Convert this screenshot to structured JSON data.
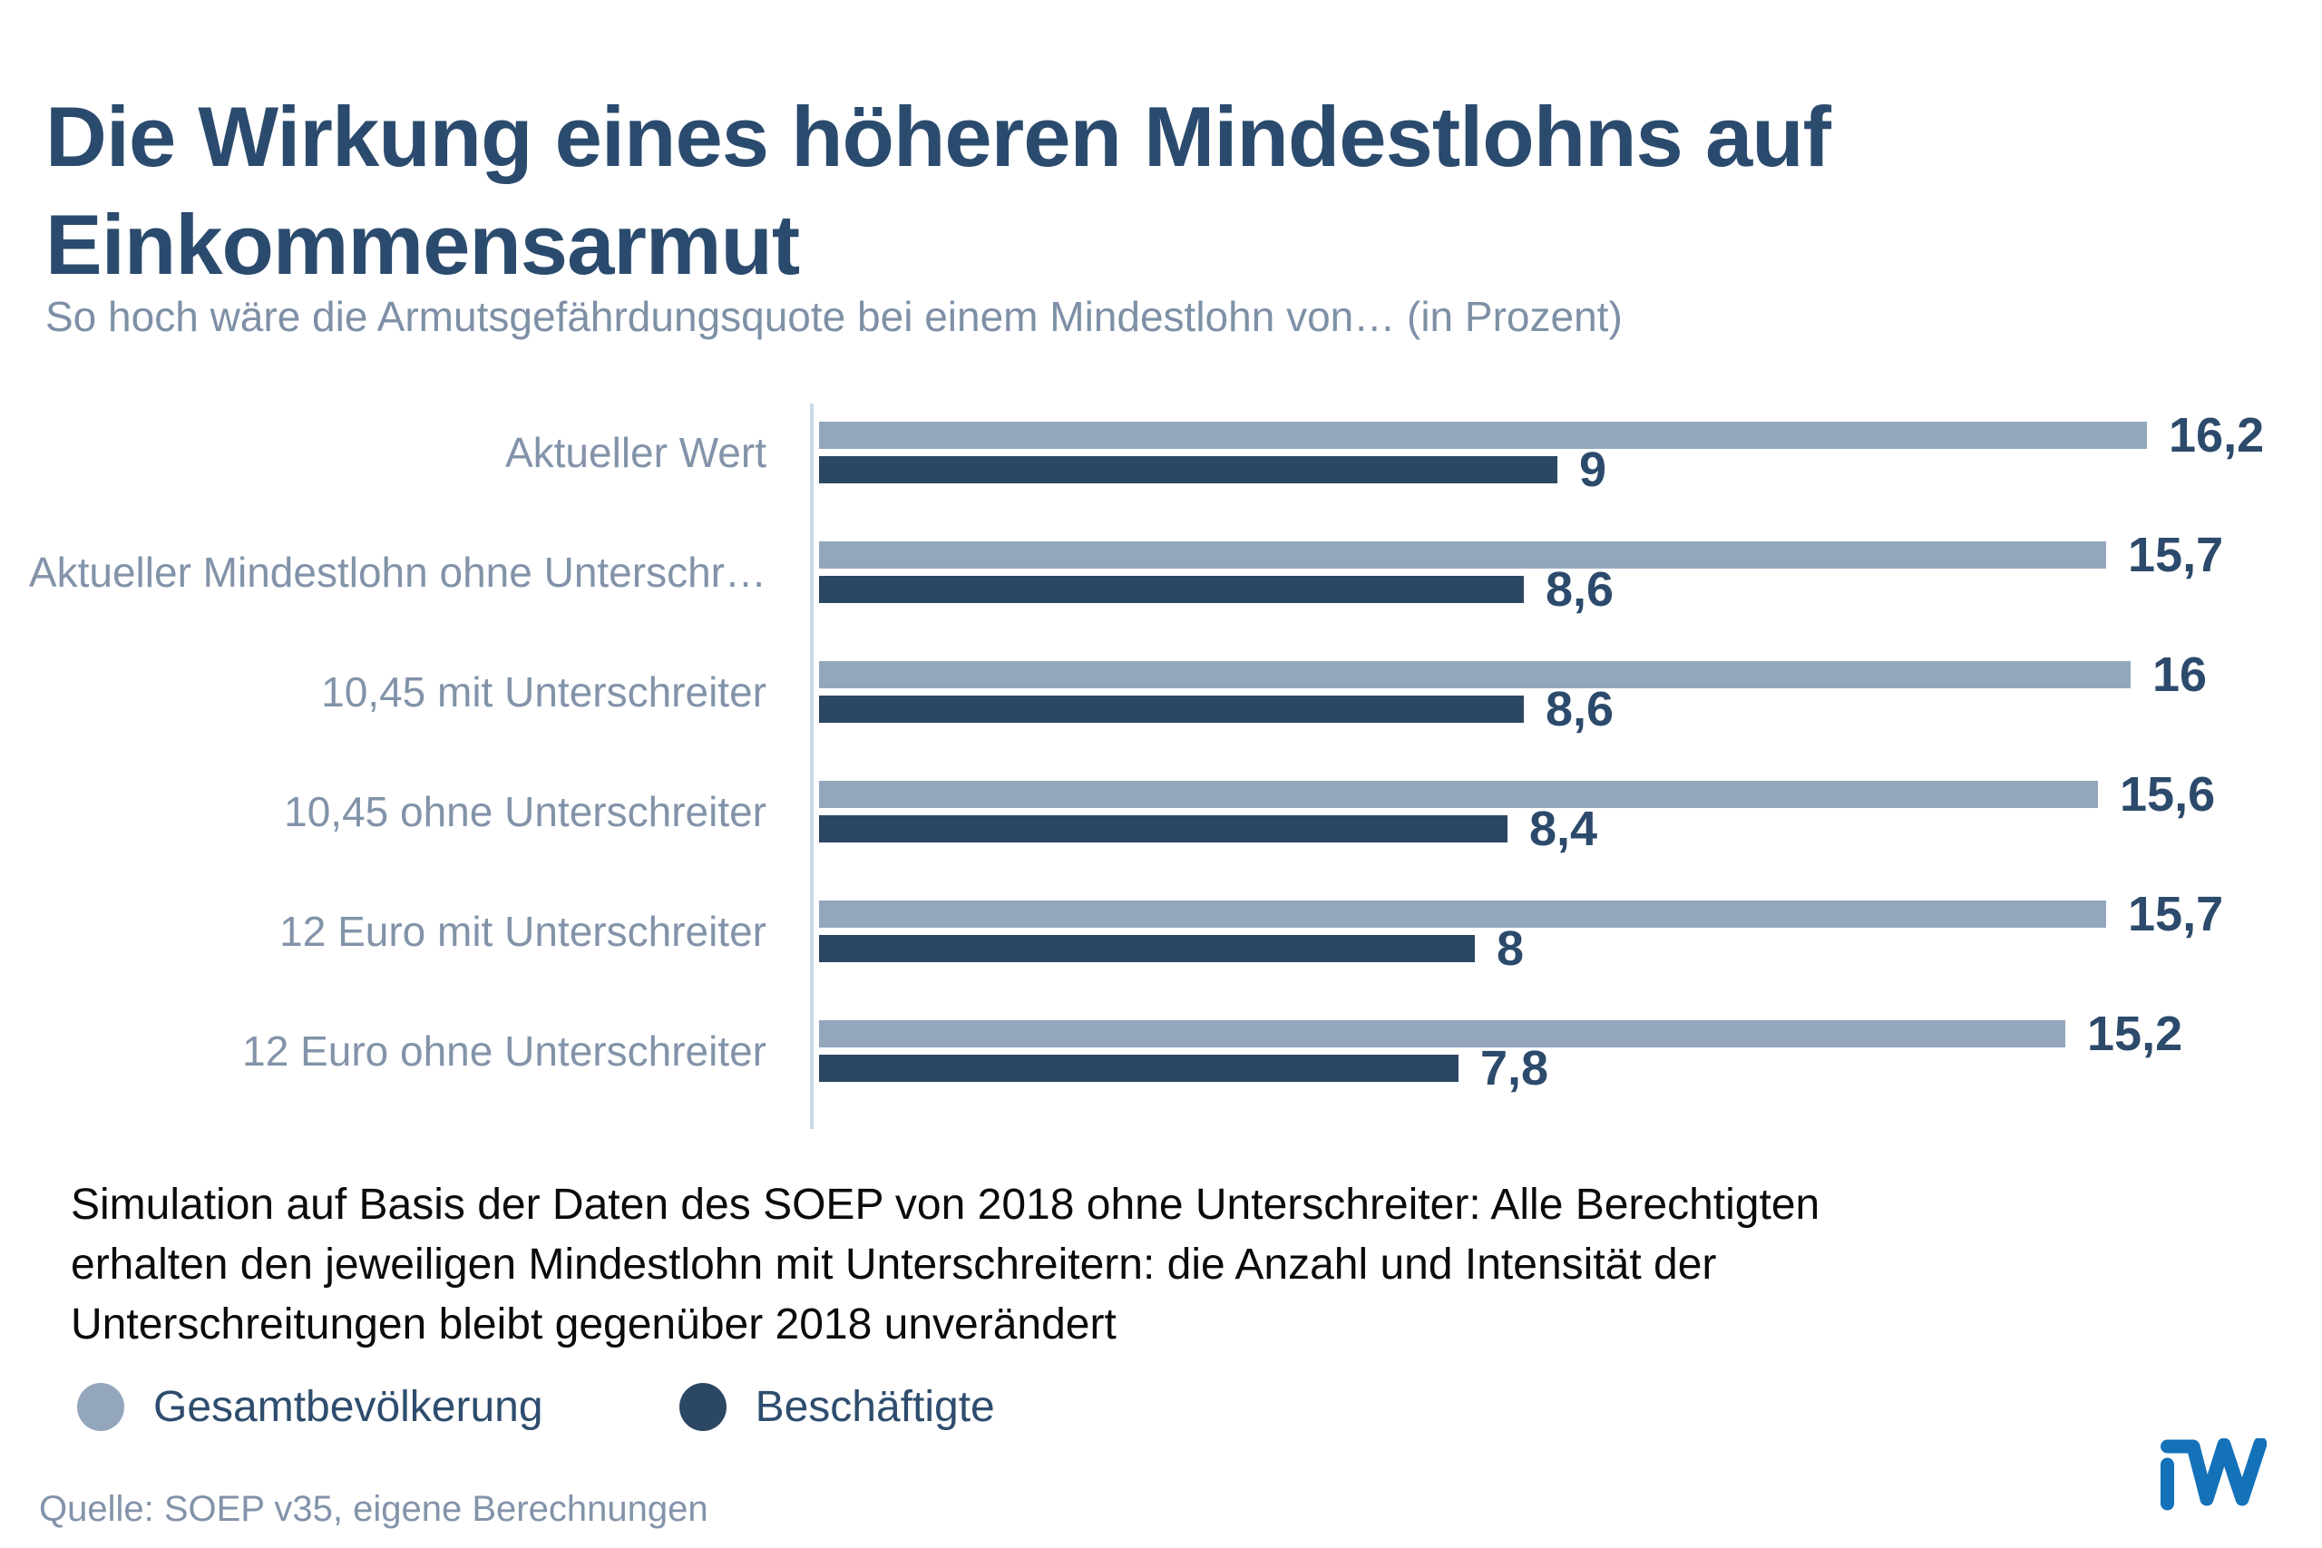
{
  "title": "Die Wirkung eines höheren Mindestlohns auf Einkommensarmut",
  "subtitle": "So hoch wäre die Armutsgefährdungsquote bei einem Mindestlohn von… (in Prozent)",
  "note_lines": [
    "Simulation auf Basis der Daten des SOEP von 2018 ohne Unterschreiter: Alle Berechtigten",
    "erhalten den jeweiligen Mindestlohn mit Unterschreitern: die Anzahl und Intensität der",
    "Unterschreitungen bleibt gegenüber 2018 unverändert"
  ],
  "legend": [
    {
      "label": "Gesamtbevölkerung",
      "color": "#93a6bc"
    },
    {
      "label": "Beschäftigte",
      "color": "#2c4763"
    }
  ],
  "source": "Quelle: SOEP v35, eigene Berechnungen",
  "logo_name": "IW",
  "colors": {
    "title": "#2b4b6e",
    "subtitle": "#7e90a6",
    "category_label": "#8293a9",
    "value_label": "#2c4a6b",
    "bar_light": "#93a6bc",
    "bar_dark": "#2c4763",
    "axis_line": "#ccd9e6",
    "logo_blue": "#1472b9"
  },
  "chart_data": {
    "type": "bar",
    "orientation": "horizontal",
    "title": "Die Wirkung eines höheren Mindestlohns auf Einkommensarmut",
    "subtitle": "So hoch wäre die Armutsgefährdungsquote bei einem Mindestlohn von… (in Prozent)",
    "unit": "Prozent",
    "categories": [
      "Aktueller Wert",
      "Aktueller Mindestlohn ohne Unterschr…",
      "10,45 mit Unterschreiter",
      "10,45 ohne Unterschreiter",
      "12 Euro mit Unterschreiter",
      "12 Euro ohne Unterschreiter"
    ],
    "series": [
      {
        "name": "Gesamtbevölkerung",
        "color": "#93a6bc",
        "values": [
          16.2,
          15.7,
          16,
          15.6,
          15.7,
          15.2
        ],
        "value_labels": [
          "16,2",
          "15,7",
          "16",
          "15,6",
          "15,7",
          "15,2"
        ]
      },
      {
        "name": "Beschäftigte",
        "color": "#2c4763",
        "values": [
          9,
          8.6,
          8.6,
          8.4,
          8,
          7.8
        ],
        "value_labels": [
          "9",
          "8,6",
          "8,6",
          "8,4",
          "8",
          "7,8"
        ]
      }
    ],
    "xlim": [
      0,
      18
    ],
    "value_labels_shown": true,
    "grid": false,
    "legend_position": "bottom"
  }
}
